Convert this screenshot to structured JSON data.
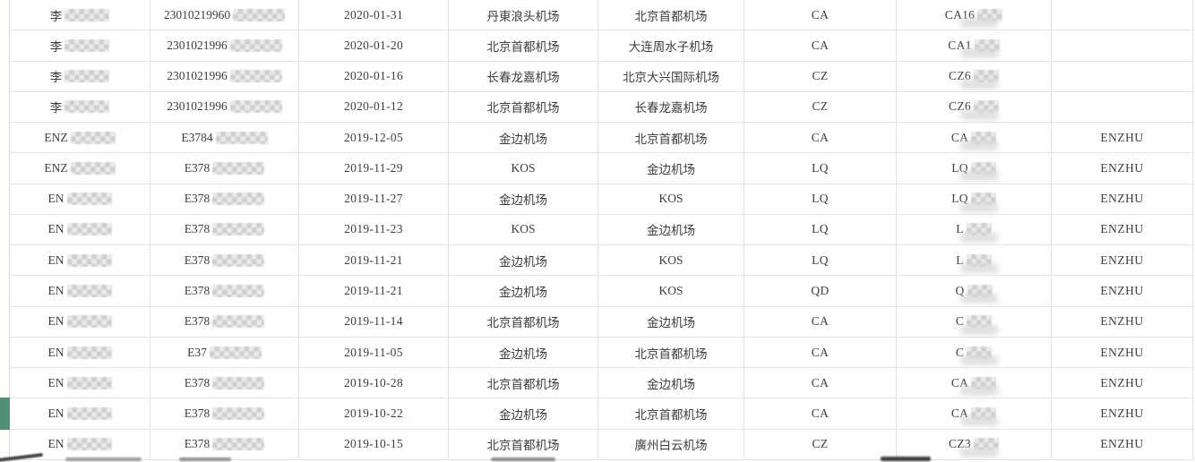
{
  "app": {
    "description_label": "flight-records-table",
    "colors": {
      "accent_green": "#518f76",
      "grid_line": "#e4e4e4",
      "text": "#3d3d3d"
    }
  },
  "table": {
    "columns": [
      "name",
      "id_number",
      "flight_date",
      "departure_airport",
      "arrival_airport",
      "airline_code",
      "flight_number",
      "agent_code"
    ],
    "partial_next_row_visible": true,
    "rows": [
      {
        "name_prefix": "李",
        "id_prefix": "23010219960",
        "date": "2020-01-31",
        "from": "丹東浪头机场",
        "to": "北京首都机场",
        "airline": "CA",
        "flight_prefix": "CA16",
        "agent": ""
      },
      {
        "name_prefix": "李",
        "id_prefix": "2301021996",
        "date": "2020-01-20",
        "from": "北京首都机场",
        "to": "大连周水子机场",
        "airline": "CA",
        "flight_prefix": "CA1",
        "agent": ""
      },
      {
        "name_prefix": "李",
        "id_prefix": "2301021996",
        "date": "2020-01-16",
        "from": "长春龙嘉机场",
        "to": "北京大兴国际机场",
        "airline": "CZ",
        "flight_prefix": "CZ6",
        "agent": ""
      },
      {
        "name_prefix": "李",
        "id_prefix": "2301021996",
        "date": "2020-01-12",
        "from": "北京首都机场",
        "to": "长春龙嘉机场",
        "airline": "CZ",
        "flight_prefix": "CZ6",
        "agent": ""
      },
      {
        "name_prefix": "ENZ",
        "id_prefix": "E3784",
        "date": "2019-12-05",
        "from": "金边机场",
        "to": "北京首都机场",
        "airline": "CA",
        "flight_prefix": "CA",
        "agent": "ENZHU"
      },
      {
        "name_prefix": "ENZ",
        "id_prefix": "E378",
        "date": "2019-11-29",
        "from": "KOS",
        "to": "金边机场",
        "airline": "LQ",
        "flight_prefix": "LQ",
        "agent": "ENZHU"
      },
      {
        "name_prefix": "EN",
        "id_prefix": "E378",
        "date": "2019-11-27",
        "from": "金边机场",
        "to": "KOS",
        "airline": "LQ",
        "flight_prefix": "LQ",
        "agent": "ENZHU"
      },
      {
        "name_prefix": "EN",
        "id_prefix": "E378",
        "date": "2019-11-23",
        "from": "KOS",
        "to": "金边机场",
        "airline": "LQ",
        "flight_prefix": "L",
        "agent": "ENZHU"
      },
      {
        "name_prefix": "EN",
        "id_prefix": "E378",
        "date": "2019-11-21",
        "from": "金边机场",
        "to": "KOS",
        "airline": "LQ",
        "flight_prefix": "L",
        "agent": "ENZHU"
      },
      {
        "name_prefix": "EN",
        "id_prefix": "E378",
        "date": "2019-11-21",
        "from": "金边机场",
        "to": "KOS",
        "airline": "QD",
        "flight_prefix": "Q",
        "agent": "ENZHU"
      },
      {
        "name_prefix": "EN",
        "id_prefix": "E378",
        "date": "2019-11-14",
        "from": "北京首都机场",
        "to": "金边机场",
        "airline": "CA",
        "flight_prefix": "C",
        "agent": "ENZHU"
      },
      {
        "name_prefix": "EN",
        "id_prefix": "E37",
        "date": "2019-11-05",
        "from": "金边机场",
        "to": "北京首都机场",
        "airline": "CA",
        "flight_prefix": "C",
        "agent": "ENZHU"
      },
      {
        "name_prefix": "EN",
        "id_prefix": "E378",
        "date": "2019-10-28",
        "from": "北京首都机场",
        "to": "金边机场",
        "airline": "CA",
        "flight_prefix": "CA",
        "agent": "ENZHU"
      },
      {
        "name_prefix": "EN",
        "id_prefix": "E378",
        "date": "2019-10-22",
        "from": "金边机场",
        "to": "北京首都机场",
        "airline": "CA",
        "flight_prefix": "CA",
        "agent": "ENZHU",
        "selected": true
      },
      {
        "name_prefix": "EN",
        "id_prefix": "E378",
        "date": "2019-10-15",
        "from": "北京首都机场",
        "to": "廣州白云机场",
        "airline": "CZ",
        "flight_prefix": "CZ3",
        "agent": "ENZHU"
      }
    ]
  }
}
